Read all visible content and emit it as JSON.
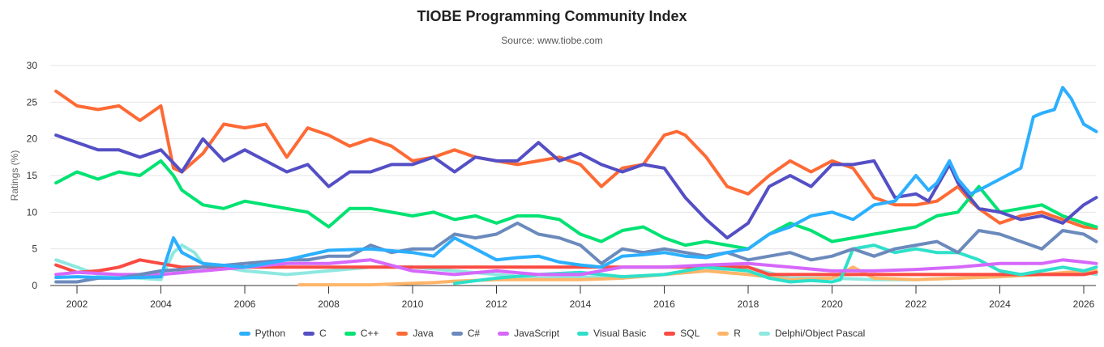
{
  "chart_data": {
    "type": "line",
    "title": "TIOBE Programming Community Index",
    "subtitle": "Source: www.tiobe.com",
    "xlabel": "",
    "ylabel": "Ratings (%)",
    "xlim": [
      2001.5,
      2026.5
    ],
    "ylim": [
      0,
      30
    ],
    "x_ticks": [
      "2002",
      "2004",
      "2006",
      "2008",
      "2010",
      "2012",
      "2014",
      "2016",
      "2018",
      "2020",
      "2022",
      "2024",
      "2026"
    ],
    "y_ticks": [
      "0",
      "5",
      "10",
      "15",
      "20",
      "25",
      "30"
    ],
    "grid": true,
    "legend_position": "bottom",
    "series": [
      {
        "name": "Python",
        "color": "#2caffe",
        "x": [
          2001.5,
          2002,
          2003,
          2004,
          2004.3,
          2004.5,
          2005,
          2006,
          2007,
          2008,
          2009,
          2010,
          2010.5,
          2011,
          2011.5,
          2012,
          2012.5,
          2013,
          2013.5,
          2014,
          2014.5,
          2015,
          2015.5,
          2016,
          2016.5,
          2017,
          2017.5,
          2018,
          2018.5,
          2019,
          2019.5,
          2020,
          2020.5,
          2021,
          2021.5,
          2022,
          2022.3,
          2022.5,
          2022.8,
          2023,
          2023.3,
          2023.5,
          2024,
          2024.5,
          2024.8,
          2025,
          2025.3,
          2025.5,
          2025.7,
          2026,
          2026.3
        ],
        "values": [
          1.1,
          1.2,
          1.0,
          1.2,
          6.5,
          4.5,
          3.0,
          2.5,
          3.5,
          4.8,
          5.0,
          4.5,
          4.0,
          6.5,
          5.0,
          3.5,
          3.8,
          4.0,
          3.2,
          2.8,
          2.5,
          4.0,
          4.2,
          4.5,
          4.0,
          3.8,
          4.5,
          5.0,
          7.0,
          8.0,
          9.5,
          10.0,
          9.0,
          11.0,
          11.5,
          15.0,
          13.0,
          14.0,
          17.0,
          14.5,
          12.5,
          13.0,
          14.5,
          16.0,
          23.0,
          23.5,
          24.0,
          27.0,
          25.5,
          22.0,
          21.0
        ]
      },
      {
        "name": "C",
        "color": "#544fc5",
        "x": [
          2001.5,
          2002,
          2002.5,
          2003,
          2003.5,
          2004,
          2004.5,
          2005,
          2005.5,
          2006,
          2006.5,
          2007,
          2007.5,
          2008,
          2008.5,
          2009,
          2009.5,
          2010,
          2010.5,
          2011,
          2011.5,
          2012,
          2012.5,
          2013,
          2013.5,
          2014,
          2014.5,
          2015,
          2015.5,
          2016,
          2016.5,
          2017,
          2017.5,
          2018,
          2018.5,
          2019,
          2019.5,
          2020,
          2020.5,
          2021,
          2021.5,
          2022,
          2022.3,
          2022.8,
          2023,
          2023.5,
          2024,
          2024.5,
          2025,
          2025.5,
          2026,
          2026.3
        ],
        "values": [
          20.5,
          19.5,
          18.5,
          18.5,
          17.5,
          18.5,
          15.5,
          20.0,
          17.0,
          18.5,
          17.0,
          15.5,
          16.5,
          13.5,
          15.5,
          15.5,
          16.5,
          16.5,
          17.5,
          15.5,
          17.5,
          17.0,
          17.0,
          19.5,
          17.0,
          18.0,
          16.5,
          15.5,
          16.5,
          16.0,
          12.0,
          9.0,
          6.5,
          8.5,
          13.5,
          15.0,
          13.5,
          16.5,
          16.5,
          17.0,
          12.0,
          12.5,
          11.5,
          16.5,
          14.0,
          10.5,
          10.0,
          9.0,
          9.5,
          8.5,
          11.0,
          12.0
        ]
      },
      {
        "name": "C++",
        "color": "#00e272",
        "x": [
          2001.5,
          2002,
          2002.5,
          2003,
          2003.5,
          2004,
          2004.3,
          2004.5,
          2005,
          2005.5,
          2006,
          2007,
          2007.5,
          2008,
          2008.5,
          2009,
          2009.5,
          2010,
          2010.5,
          2011,
          2011.5,
          2012,
          2012.5,
          2013,
          2013.5,
          2014,
          2014.5,
          2015,
          2015.5,
          2016,
          2016.5,
          2017,
          2017.5,
          2018,
          2018.5,
          2019,
          2019.5,
          2020,
          2020.5,
          2021,
          2021.5,
          2022,
          2022.5,
          2023,
          2023.5,
          2024,
          2024.5,
          2025,
          2025.5,
          2026,
          2026.3
        ],
        "values": [
          14.0,
          15.5,
          14.5,
          15.5,
          15.0,
          17.0,
          15.0,
          13.0,
          11.0,
          10.5,
          11.5,
          10.5,
          10.0,
          8.0,
          10.5,
          10.5,
          10.0,
          9.5,
          10.0,
          9.0,
          9.5,
          8.5,
          9.5,
          9.5,
          9.0,
          7.0,
          6.0,
          7.5,
          8.0,
          6.5,
          5.5,
          6.0,
          5.5,
          5.0,
          7.0,
          8.5,
          7.5,
          6.0,
          6.5,
          7.0,
          7.5,
          8.0,
          9.5,
          10.0,
          13.5,
          10.0,
          10.5,
          11.0,
          9.5,
          8.5,
          8.0
        ]
      },
      {
        "name": "Java",
        "color": "#fe6a35",
        "x": [
          2001.5,
          2002,
          2002.5,
          2003,
          2003.5,
          2004,
          2004.3,
          2004.5,
          2005,
          2005.5,
          2006,
          2006.5,
          2007,
          2007.5,
          2008,
          2008.5,
          2009,
          2009.5,
          2010,
          2010.5,
          2011,
          2011.5,
          2012,
          2012.5,
          2013,
          2013.5,
          2014,
          2014.5,
          2015,
          2015.5,
          2016,
          2016.3,
          2016.5,
          2017,
          2017.5,
          2018,
          2018.5,
          2019,
          2019.5,
          2020,
          2020.5,
          2021,
          2021.5,
          2022,
          2022.5,
          2023,
          2023.3,
          2023.5,
          2024,
          2024.5,
          2025,
          2025.5,
          2026,
          2026.3
        ],
        "values": [
          26.5,
          24.5,
          24.0,
          24.5,
          22.5,
          24.5,
          16.0,
          15.5,
          18.0,
          22.0,
          21.5,
          22.0,
          17.5,
          21.5,
          20.5,
          19.0,
          20.0,
          19.0,
          17.0,
          17.5,
          18.5,
          17.5,
          17.0,
          16.5,
          17.0,
          17.5,
          16.5,
          13.5,
          16.0,
          16.5,
          20.5,
          21.0,
          20.5,
          17.5,
          13.5,
          12.5,
          15.0,
          17.0,
          15.5,
          17.0,
          16.0,
          12.0,
          11.0,
          11.0,
          11.5,
          13.5,
          11.5,
          10.5,
          8.5,
          9.5,
          10.0,
          9.0,
          8.0,
          7.8
        ]
      },
      {
        "name": "C#",
        "color": "#6b8abc",
        "x": [
          2001.5,
          2002,
          2002.5,
          2003,
          2003.5,
          2004,
          2004.5,
          2005,
          2006,
          2007,
          2007.5,
          2008,
          2008.5,
          2009,
          2009.5,
          2010,
          2010.5,
          2011,
          2011.5,
          2012,
          2012.5,
          2013,
          2013.5,
          2014,
          2014.5,
          2015,
          2015.5,
          2016,
          2016.5,
          2017,
          2017.5,
          2018,
          2018.5,
          2019,
          2019.5,
          2020,
          2020.5,
          2021,
          2021.5,
          2022,
          2022.5,
          2023,
          2023.5,
          2024,
          2024.5,
          2025,
          2025.3,
          2025.5,
          2026,
          2026.3
        ],
        "values": [
          0.5,
          0.5,
          1.0,
          1.0,
          1.5,
          2.0,
          2.2,
          2.5,
          3.0,
          3.5,
          3.5,
          4.0,
          4.0,
          5.5,
          4.5,
          5.0,
          5.0,
          7.0,
          6.5,
          7.0,
          8.5,
          7.0,
          6.5,
          5.5,
          3.0,
          5.0,
          4.5,
          5.0,
          4.5,
          4.0,
          4.5,
          3.5,
          4.0,
          4.5,
          3.5,
          4.0,
          5.0,
          4.0,
          5.0,
          5.5,
          6.0,
          4.5,
          7.5,
          7.0,
          6.0,
          5.0,
          6.5,
          7.5,
          7.0,
          6.0
        ]
      },
      {
        "name": "JavaScript",
        "color": "#d568fb",
        "x": [
          2001.5,
          2002,
          2003,
          2004,
          2005,
          2006,
          2007,
          2008,
          2009,
          2010,
          2011,
          2012,
          2013,
          2014,
          2015,
          2016,
          2017,
          2018,
          2019,
          2020,
          2021,
          2022,
          2023,
          2024,
          2025,
          2025.5,
          2026,
          2026.3
        ],
        "values": [
          1.5,
          1.8,
          1.5,
          1.5,
          2.0,
          2.5,
          3.0,
          3.0,
          3.5,
          2.0,
          1.5,
          2.0,
          1.5,
          1.5,
          2.5,
          2.5,
          2.8,
          3.0,
          2.5,
          2.0,
          2.0,
          2.2,
          2.5,
          3.0,
          3.0,
          3.5,
          3.2,
          3.0
        ]
      },
      {
        "name": "Visual Basic",
        "color": "#2ee0ca",
        "x": [
          2011,
          2012,
          2013,
          2014,
          2015,
          2016,
          2017,
          2018,
          2018.5,
          2019,
          2019.5,
          2020,
          2020.2,
          2020.5,
          2021,
          2021.5,
          2022,
          2022.5,
          2023,
          2023.5,
          2024,
          2024.5,
          2025,
          2025.5,
          2026,
          2026.3
        ],
        "values": [
          0.3,
          1.0,
          1.5,
          1.8,
          1.2,
          1.5,
          2.5,
          2.0,
          1.0,
          0.5,
          0.7,
          0.5,
          0.8,
          5.0,
          5.5,
          4.5,
          5.0,
          4.5,
          4.5,
          3.5,
          2.0,
          1.5,
          2.0,
          2.5,
          2.0,
          2.5
        ]
      },
      {
        "name": "SQL",
        "color": "#fa4b42",
        "x": [
          2001.5,
          2002,
          2002.5,
          2003,
          2003.5,
          2004,
          2004.5,
          2005,
          2006,
          2007,
          2008,
          2009,
          2010,
          2011,
          2012,
          2013,
          2014,
          2015,
          2016,
          2017,
          2018,
          2018.5,
          2019,
          2020,
          2021,
          2022,
          2023,
          2024,
          2025,
          2026,
          2026.3
        ],
        "values": [
          2.8,
          1.8,
          2.0,
          2.5,
          3.5,
          3.0,
          2.5,
          2.5,
          2.5,
          2.5,
          2.5,
          2.5,
          2.5,
          2.5,
          2.5,
          2.5,
          2.5,
          2.5,
          2.5,
          2.5,
          2.5,
          1.5,
          1.5,
          1.5,
          1.5,
          1.5,
          1.5,
          1.5,
          1.5,
          1.5,
          1.8
        ]
      },
      {
        "name": "R",
        "color": "#feb56a",
        "x": [
          2007.3,
          2008,
          2009,
          2010,
          2010.5,
          2011,
          2012,
          2013,
          2014,
          2015,
          2016,
          2017,
          2018,
          2019,
          2020,
          2020.5,
          2021,
          2022,
          2023,
          2024,
          2025,
          2026,
          2026.3
        ],
        "values": [
          0.1,
          0.1,
          0.1,
          0.3,
          0.4,
          0.6,
          0.8,
          0.8,
          0.8,
          1.0,
          1.5,
          2.0,
          1.5,
          0.8,
          1.0,
          2.5,
          1.0,
          0.8,
          1.0,
          1.2,
          1.5,
          2.0,
          2.0
        ]
      },
      {
        "name": "Delphi/Object Pascal",
        "color": "#8ee8e0",
        "x": [
          2001.5,
          2002,
          2002.5,
          2003,
          2003.5,
          2004,
          2004.3,
          2004.5,
          2004.8,
          2005,
          2006,
          2007,
          2008,
          2009,
          2010,
          2011,
          2012,
          2013,
          2014,
          2015,
          2016,
          2017,
          2018,
          2019,
          2020,
          2021,
          2022,
          2023,
          2024,
          2025,
          2026,
          2026.3
        ],
        "values": [
          3.5,
          2.5,
          1.5,
          1.2,
          1.0,
          0.8,
          4.5,
          5.5,
          4.5,
          3.0,
          2.0,
          1.5,
          2.0,
          2.5,
          2.5,
          2.0,
          1.5,
          1.0,
          1.2,
          1.0,
          1.5,
          2.0,
          2.5,
          1.0,
          1.0,
          0.8,
          0.8,
          1.0,
          1.2,
          1.5,
          1.8,
          1.5
        ]
      }
    ]
  }
}
